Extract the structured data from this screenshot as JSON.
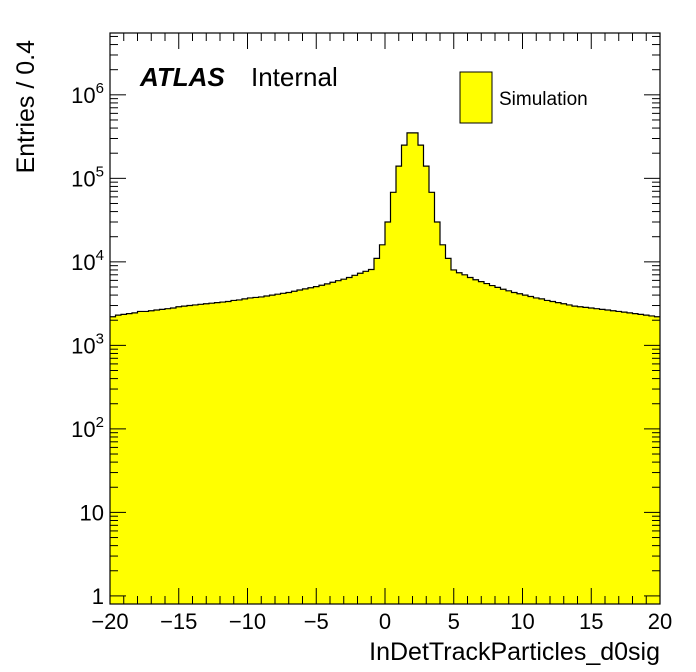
{
  "chart_data": {
    "type": "bar",
    "histogram": true,
    "xlabel": "InDetTrackParticles_d0sig",
    "ylabel": "Entries / 0.4",
    "xlim": [
      -20,
      20
    ],
    "ylim": [
      0.8,
      5500000
    ],
    "log_y": true,
    "bin_width": 0.4,
    "x_ticks": [
      -20,
      -15,
      -10,
      -5,
      0,
      5,
      10,
      15,
      20
    ],
    "x_tick_labels": [
      "−20",
      "−15",
      "−10",
      "−5",
      "0",
      "5",
      "10",
      "15",
      "20"
    ],
    "y_ticks": [
      1,
      10,
      100,
      1000,
      10000,
      100000,
      1000000
    ],
    "y_tick_labels": [
      {
        "base": "1",
        "exp": ""
      },
      {
        "base": "10",
        "exp": ""
      },
      {
        "base": "10",
        "exp": "2"
      },
      {
        "base": "10",
        "exp": "3"
      },
      {
        "base": "10",
        "exp": "4"
      },
      {
        "base": "10",
        "exp": "5"
      },
      {
        "base": "10",
        "exp": "6"
      }
    ],
    "grid": false,
    "legend_position": "top-right",
    "annotation": {
      "atlas": "ATLAS",
      "label": "Internal"
    },
    "series": [
      {
        "name": "Simulation",
        "color": "#ffff00",
        "edge_color": "#000000",
        "values": [
          2200,
          2300,
          2350,
          2400,
          2450,
          2550,
          2550,
          2600,
          2650,
          2700,
          2750,
          2800,
          2900,
          2950,
          3000,
          3050,
          3100,
          3150,
          3200,
          3250,
          3300,
          3350,
          3450,
          3500,
          3600,
          3700,
          3750,
          3800,
          3900,
          4000,
          4100,
          4200,
          4300,
          4450,
          4600,
          4750,
          4900,
          5050,
          5250,
          5450,
          5700,
          5950,
          6200,
          6500,
          6900,
          7300,
          7700,
          8100,
          11000,
          16000,
          30000,
          68000,
          140000,
          250000,
          350000,
          350000,
          250000,
          140000,
          68000,
          30000,
          16000,
          11000,
          8000,
          7400,
          7000,
          6500,
          6100,
          5800,
          5500,
          5200,
          4950,
          4700,
          4500,
          4300,
          4150,
          4000,
          3850,
          3700,
          3600,
          3450,
          3350,
          3250,
          3150,
          3050,
          2950,
          2900,
          2850,
          2800,
          2750,
          2700,
          2650,
          2600,
          2550,
          2500,
          2450,
          2400,
          2350,
          2300,
          2250,
          2200
        ]
      }
    ]
  }
}
